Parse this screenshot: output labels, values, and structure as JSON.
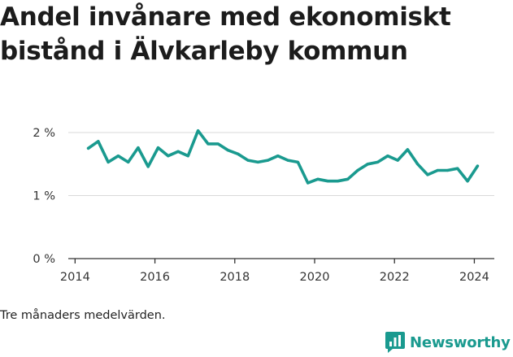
{
  "title": "Andel invånare med ekonomiskt bistånd i Älvkarleby kommun",
  "footnote": "Tre månaders medelvärden.",
  "brand": {
    "name": "Newsworthy",
    "icon": "bar-chart-icon",
    "color": "#1a9a8f"
  },
  "colors": {
    "line": "#1a9a8f",
    "grid": "#d9d9d9",
    "axis": "#333333"
  },
  "chart_data": {
    "type": "line",
    "title": "Andel invånare med ekonomiskt bistånd i Älvkarleby kommun",
    "xlabel": "",
    "ylabel": "",
    "xlim": [
      2013.83,
      2024.5
    ],
    "ylim": [
      0,
      2
    ],
    "x_ticks": [
      2014,
      2016,
      2018,
      2020,
      2022,
      2024
    ],
    "y_ticks": [
      0,
      1,
      2
    ],
    "y_tick_labels": [
      "0 %",
      "1 %",
      "2 %"
    ],
    "grid": "horizontal",
    "series": [
      {
        "x": [
          2014.33,
          2014.58,
          2014.83,
          2015.08,
          2015.33,
          2015.58,
          2015.83,
          2016.08,
          2016.33,
          2016.58,
          2016.83,
          2017.08,
          2017.33,
          2017.58,
          2017.83,
          2018.08,
          2018.33,
          2018.58,
          2018.83,
          2019.08,
          2019.33,
          2019.58,
          2019.83,
          2020.08,
          2020.33,
          2020.58,
          2020.83,
          2021.08,
          2021.33,
          2021.58,
          2021.83,
          2022.08,
          2022.33,
          2022.58,
          2022.83,
          2023.08,
          2023.33,
          2023.58,
          2023.83,
          2024.08
        ],
        "values": [
          1.75,
          1.86,
          1.53,
          1.63,
          1.53,
          1.76,
          1.46,
          1.76,
          1.63,
          1.7,
          1.63,
          2.03,
          1.82,
          1.82,
          1.72,
          1.66,
          1.56,
          1.53,
          1.56,
          1.63,
          1.56,
          1.53,
          1.2,
          1.26,
          1.23,
          1.23,
          1.26,
          1.4,
          1.5,
          1.53,
          1.63,
          1.56,
          1.73,
          1.5,
          1.33,
          1.4,
          1.4,
          1.43,
          1.23,
          1.47
        ]
      }
    ]
  }
}
